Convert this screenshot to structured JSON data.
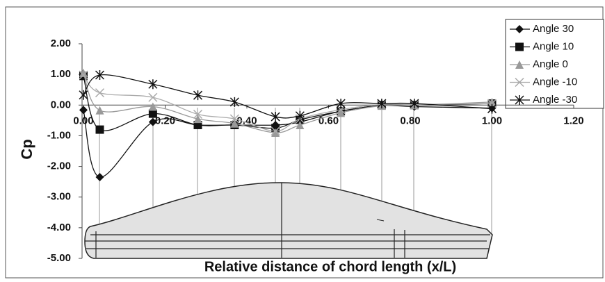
{
  "chart_data": {
    "type": "line",
    "x_label": "Relative distance of chord length (x/L)",
    "y_label": "Cp",
    "x": [
      0,
      0.04,
      0.17,
      0.28,
      0.37,
      0.47,
      0.53,
      0.63,
      0.73,
      0.81,
      1.0
    ],
    "series": [
      {
        "name": "Angle 30",
        "color": "#111111",
        "marker": "diamond",
        "values": [
          -0.16,
          -2.35,
          -0.55,
          -0.65,
          -0.65,
          -0.65,
          -0.55,
          -0.2,
          -0.02,
          -0.05,
          -0.1
        ]
      },
      {
        "name": "Angle 10",
        "color": "#111111",
        "marker": "square",
        "values": [
          0.95,
          -0.8,
          -0.28,
          -0.65,
          -0.65,
          -0.75,
          -0.48,
          -0.2,
          0,
          0,
          0.05
        ]
      },
      {
        "name": "Angle 0",
        "color": "#999999",
        "marker": "triangle",
        "values": [
          1.05,
          -0.17,
          -0.05,
          -0.45,
          -0.6,
          -0.9,
          -0.65,
          -0.25,
          -0.02,
          0,
          0.1
        ]
      },
      {
        "name": "Angle -10",
        "color": "#aaaaaa",
        "marker": "x",
        "values": [
          0.98,
          0.4,
          0.25,
          -0.3,
          -0.45,
          -0.85,
          -0.45,
          -0.15,
          0.02,
          0.02,
          0.05
        ]
      },
      {
        "name": "Angle -30",
        "color": "#111111",
        "marker": "star",
        "values": [
          0.33,
          0.98,
          0.68,
          0.32,
          0.1,
          -0.38,
          -0.35,
          0.05,
          0.05,
          0.05,
          -0.12
        ]
      }
    ],
    "xlim": [
      0,
      1.2
    ],
    "ylim": [
      -5,
      2
    ],
    "xticks": [
      {
        "value": 0,
        "label": "0.00"
      },
      {
        "value": 0.2,
        "label": "0.20"
      },
      {
        "value": 0.4,
        "label": "0.40"
      },
      {
        "value": 0.6,
        "label": "0.60"
      },
      {
        "value": 0.8,
        "label": "0.80"
      },
      {
        "value": 1.0,
        "label": "1.00"
      },
      {
        "value": 1.2,
        "label": "1.20"
      }
    ],
    "yticks": [
      {
        "value": 2,
        "label": "2.00"
      },
      {
        "value": 1,
        "label": "1.00"
      },
      {
        "value": 0,
        "label": "0.00"
      },
      {
        "value": -1,
        "label": "-1.00"
      },
      {
        "value": -2,
        "label": "-2.00"
      },
      {
        "value": -3,
        "label": "-3.00"
      },
      {
        "value": -4,
        "label": "-4.00"
      },
      {
        "value": -5,
        "label": "-5.00"
      }
    ],
    "legend": "top-right",
    "smooth": true
  }
}
